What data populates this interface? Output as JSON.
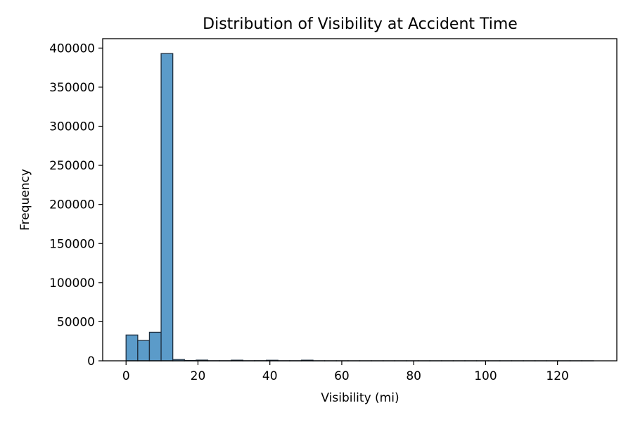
{
  "chart_data": {
    "type": "bar",
    "title": "Distribution of Visibility at Accident Time",
    "xlabel": "Visibility (mi)",
    "ylabel": "Frequency",
    "xlim": [
      -6.5,
      136.5
    ],
    "ylim": [
      0,
      412000
    ],
    "xticks": [
      0,
      20,
      40,
      60,
      80,
      100,
      120
    ],
    "yticks": [
      0,
      50000,
      100000,
      150000,
      200000,
      250000,
      300000,
      350000,
      400000
    ],
    "bin_width": 3.25,
    "bins": [
      {
        "x0": 0.0,
        "count": 33000
      },
      {
        "x0": 3.25,
        "count": 26000
      },
      {
        "x0": 6.5,
        "count": 36500
      },
      {
        "x0": 9.75,
        "count": 393000
      },
      {
        "x0": 13.0,
        "count": 1600
      },
      {
        "x0": 16.25,
        "count": 300
      },
      {
        "x0": 19.5,
        "count": 900
      },
      {
        "x0": 22.75,
        "count": 100
      },
      {
        "x0": 26.0,
        "count": 100
      },
      {
        "x0": 29.25,
        "count": 800
      },
      {
        "x0": 32.5,
        "count": 100
      },
      {
        "x0": 35.75,
        "count": 150
      },
      {
        "x0": 39.0,
        "count": 700
      },
      {
        "x0": 42.25,
        "count": 100
      },
      {
        "x0": 45.5,
        "count": 100
      },
      {
        "x0": 48.75,
        "count": 800
      },
      {
        "x0": 52.0,
        "count": 50
      },
      {
        "x0": 55.25,
        "count": 30
      },
      {
        "x0": 58.5,
        "count": 30
      },
      {
        "x0": 61.75,
        "count": 20
      },
      {
        "x0": 65.0,
        "count": 20
      },
      {
        "x0": 68.25,
        "count": 20
      },
      {
        "x0": 71.5,
        "count": 20
      },
      {
        "x0": 74.75,
        "count": 20
      },
      {
        "x0": 78.0,
        "count": 20
      },
      {
        "x0": 81.25,
        "count": 20
      },
      {
        "x0": 84.5,
        "count": 20
      },
      {
        "x0": 87.75,
        "count": 20
      },
      {
        "x0": 91.0,
        "count": 20
      },
      {
        "x0": 94.25,
        "count": 20
      },
      {
        "x0": 97.5,
        "count": 20
      },
      {
        "x0": 100.75,
        "count": 20
      },
      {
        "x0": 104.0,
        "count": 20
      },
      {
        "x0": 107.25,
        "count": 20
      },
      {
        "x0": 110.5,
        "count": 20
      },
      {
        "x0": 113.75,
        "count": 20
      },
      {
        "x0": 117.0,
        "count": 20
      },
      {
        "x0": 120.25,
        "count": 20
      },
      {
        "x0": 123.5,
        "count": 20
      },
      {
        "x0": 126.75,
        "count": 20
      }
    ],
    "grid": false,
    "legend": "none",
    "colors": {
      "bar_fill": "#5b9bc9",
      "bar_edge": "#1f2f3f",
      "axis": "#000000"
    }
  }
}
